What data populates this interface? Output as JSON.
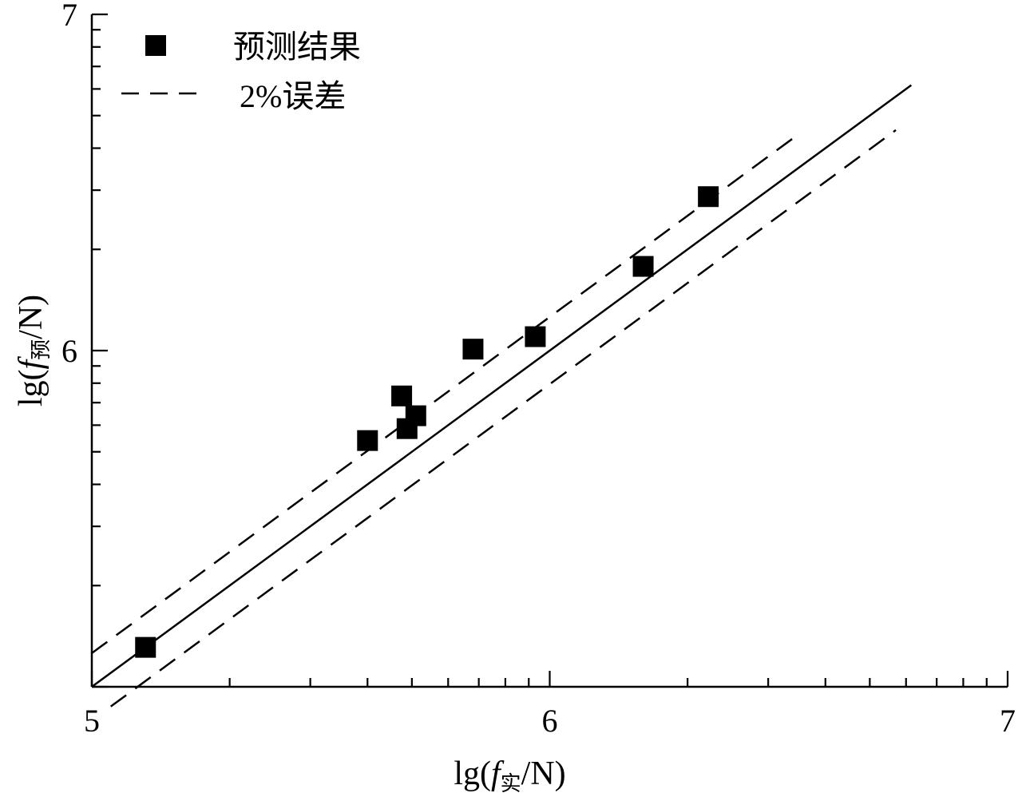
{
  "chart_data": {
    "type": "scatter",
    "x_axis": {
      "label_main": "lg(",
      "label_f": "f",
      "label_sub": "实",
      "label_tail": "/N)",
      "scale": "log",
      "lim": [
        100000,
        10000000
      ],
      "ticks": [
        "5",
        "6",
        "7"
      ]
    },
    "y_axis": {
      "label_main": "lg(",
      "label_f": "f",
      "label_sub": "预",
      "label_tail": "/N)",
      "scale": "log",
      "lim": [
        100000,
        10000000
      ],
      "ticks": [
        "5",
        "6",
        "7"
      ]
    },
    "series": [
      {
        "name": "预测结果",
        "marker": "square",
        "color": "#000000",
        "points": [
          {
            "x": 131000,
            "y": 131000
          },
          {
            "x": 400000,
            "y": 540000
          },
          {
            "x": 475000,
            "y": 733000
          },
          {
            "x": 488000,
            "y": 586000
          },
          {
            "x": 510000,
            "y": 640000
          },
          {
            "x": 680000,
            "y": 1010000
          },
          {
            "x": 930000,
            "y": 1100000
          },
          {
            "x": 1600000,
            "y": 1780000
          },
          {
            "x": 2220000,
            "y": 2870000
          }
        ]
      }
    ],
    "reference_lines": [
      {
        "name": "",
        "style": "solid",
        "x_range": [
          100000,
          6160000
        ],
        "slope": 1,
        "offset_lg": 0
      },
      {
        "name": "2%误差",
        "style": "dashed",
        "x_range": [
          100000,
          3400000
        ],
        "slope": 1,
        "offset_lg": 0.1
      },
      {
        "name": "2%误差",
        "style": "dashed",
        "x_range": [
          110000,
          5700000
        ],
        "slope": 1,
        "offset_lg": -0.1
      }
    ],
    "legend": {
      "placement": "top-left",
      "entries": [
        {
          "label": "预测结果",
          "kind": "square"
        },
        {
          "label": "2%误差",
          "kind": "dashed"
        }
      ]
    },
    "grid": false
  }
}
